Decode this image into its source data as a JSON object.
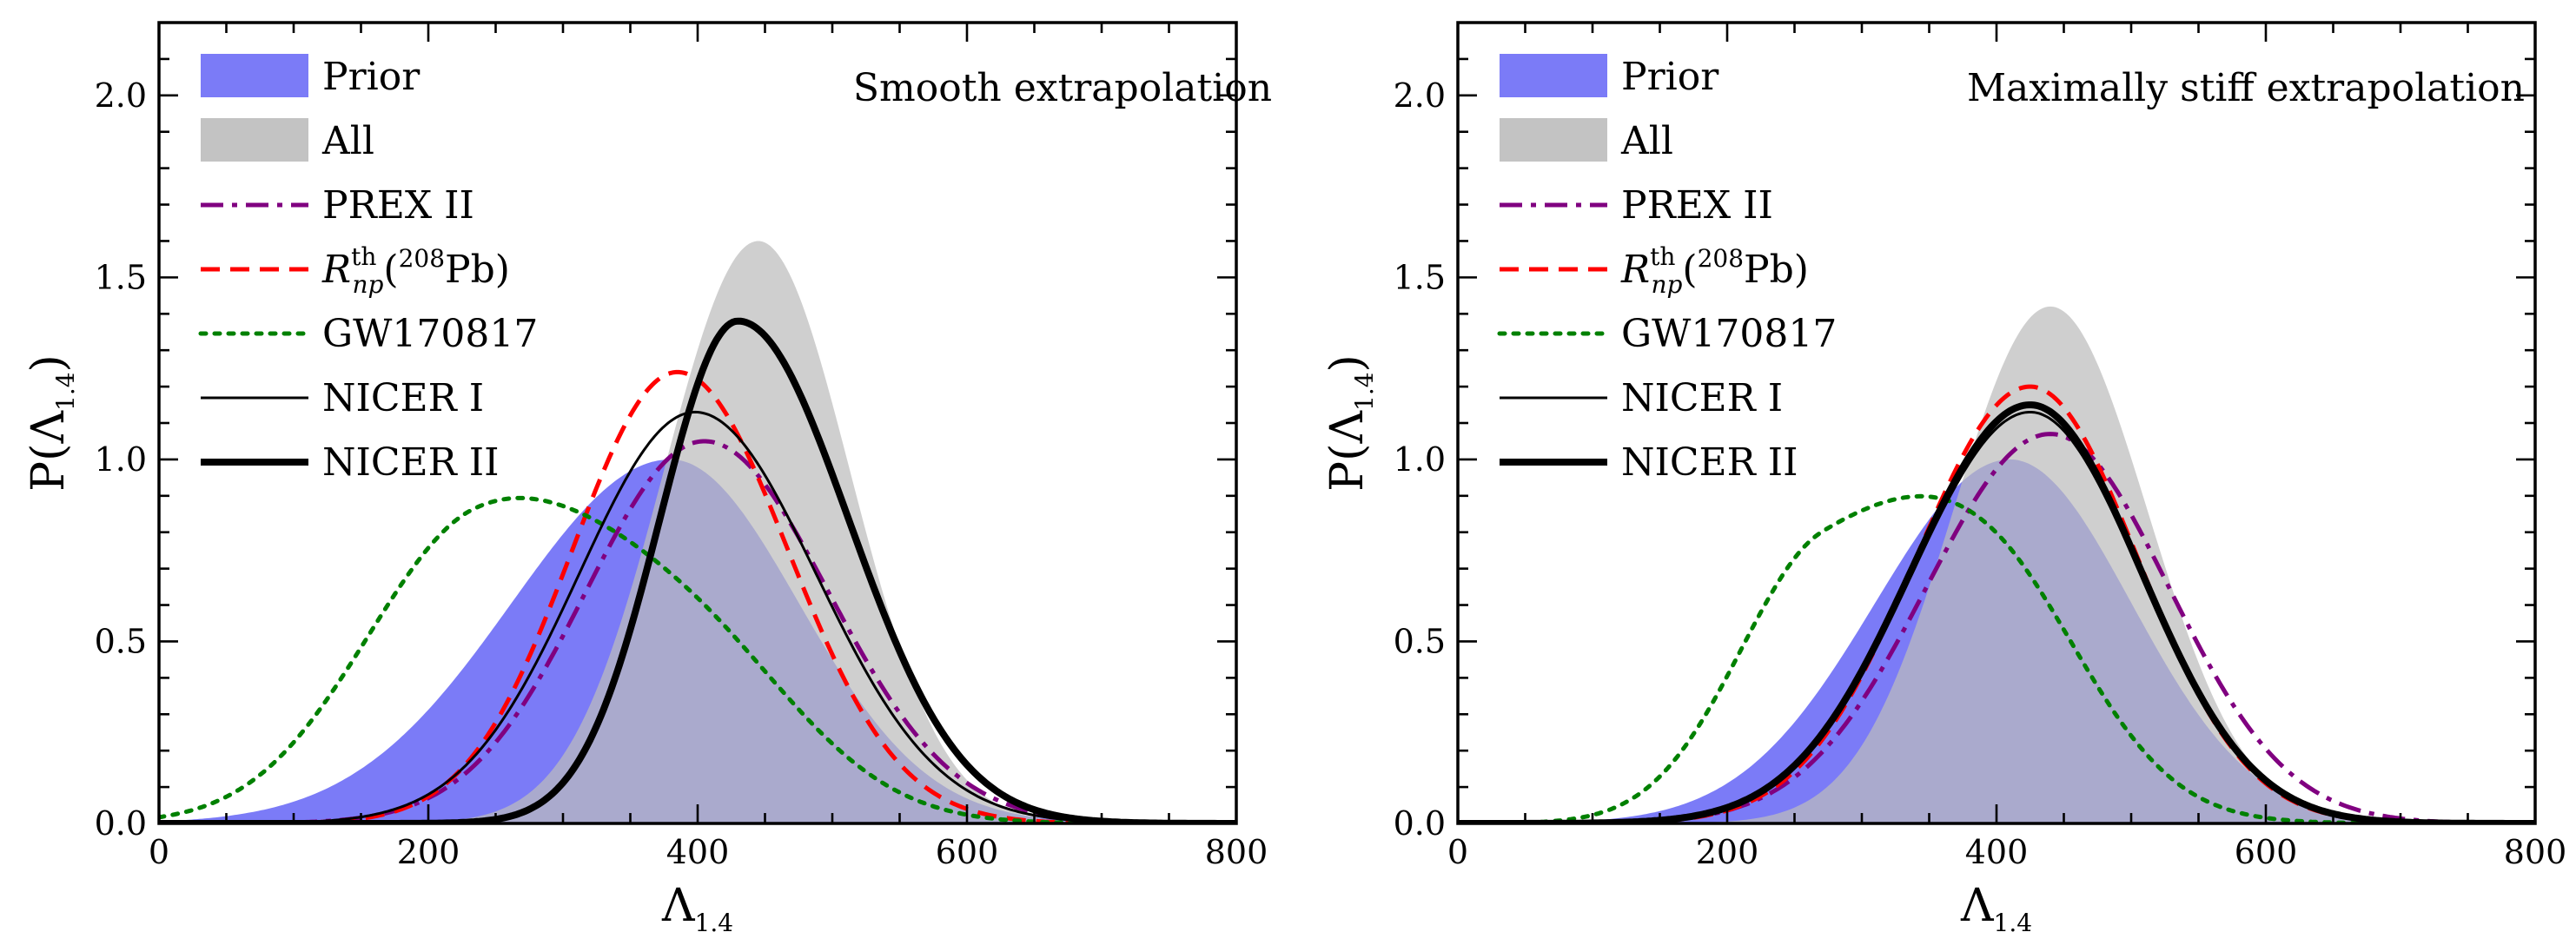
{
  "chart_data": [
    {
      "type": "area",
      "annotation": "Smooth extrapolation",
      "xlabel": "Λ",
      "xlabel_sub": "1.4",
      "ylabel": "P(Λ",
      "ylabel_sub": "1.4",
      "ylabel_close": ")",
      "xlim": [
        0,
        800
      ],
      "ylim": [
        0,
        2.2
      ],
      "xticks": [
        0,
        200,
        400,
        600,
        800
      ],
      "yticks": [
        0.0,
        0.5,
        1.0,
        1.5,
        2.0
      ],
      "xtick_labels": [
        "0",
        "200",
        "400",
        "600",
        "800"
      ],
      "ytick_labels": [
        "0.0",
        "0.5",
        "1.0",
        "1.5",
        "2.0"
      ],
      "legend": [
        {
          "key": "prior",
          "label": "Prior"
        },
        {
          "key": "all",
          "label": "All"
        },
        {
          "key": "prex",
          "label": "PREX II"
        },
        {
          "key": "rnp",
          "label": "R",
          "label_sub": "np",
          "label_sup": "th",
          "label_rest": "(",
          "label_sup2": "208",
          "label_end": "Pb)"
        },
        {
          "key": "gw",
          "label": "GW170817"
        },
        {
          "key": "nicer1",
          "label": "NICER I"
        },
        {
          "key": "nicer2",
          "label": "NICER II"
        }
      ],
      "series": [
        {
          "key": "prior",
          "name": "Prior",
          "kind": "fill",
          "color": "#7b7bf7",
          "peaks": [
            [
              380,
              1.0,
              118,
              95
            ]
          ]
        },
        {
          "key": "all",
          "name": "All",
          "kind": "fill",
          "color": "#bdbdbd",
          "peaks": [
            [
              445,
              1.6,
              70,
              68
            ]
          ]
        },
        {
          "key": "prex",
          "name": "PREX II",
          "kind": "line",
          "color": "#800080",
          "dash": "dashdot",
          "peaks": [
            [
              405,
              1.05,
              88,
              92
            ]
          ]
        },
        {
          "key": "rnp",
          "name": "Rnp th (208Pb)",
          "kind": "line",
          "color": "#ff0000",
          "dash": "dash",
          "peaks": [
            [
              385,
              1.24,
              78,
              82
            ]
          ]
        },
        {
          "key": "gw",
          "name": "GW170817",
          "kind": "line",
          "color": "#008000",
          "dash": "dot",
          "peaks": [
            [
              235,
              0.78,
              85,
              100
            ],
            [
              395,
              0.42,
              90,
              85
            ]
          ]
        },
        {
          "key": "nicer1",
          "name": "NICER I",
          "kind": "line",
          "color": "#000000",
          "dash": "solid",
          "width": "thin",
          "peaks": [
            [
              398,
              1.13,
              86,
              90
            ]
          ]
        },
        {
          "key": "nicer2",
          "name": "NICER II",
          "kind": "line",
          "color": "#000000",
          "dash": "solid",
          "width": "thick",
          "peaks": [
            [
              430,
              1.38,
              58,
              82
            ]
          ]
        }
      ]
    },
    {
      "type": "area",
      "annotation": "Maximally stiff extrapolation",
      "xlabel": "Λ",
      "xlabel_sub": "1.4",
      "ylabel": "P(Λ",
      "ylabel_sub": "1.4",
      "ylabel_close": ")",
      "xlim": [
        0,
        800
      ],
      "ylim": [
        0,
        2.2
      ],
      "xticks": [
        0,
        200,
        400,
        600,
        800
      ],
      "yticks": [
        0.0,
        0.5,
        1.0,
        1.5,
        2.0
      ],
      "xtick_labels": [
        "0",
        "200",
        "400",
        "600",
        "800"
      ],
      "ytick_labels": [
        "0.0",
        "0.5",
        "1.0",
        "1.5",
        "2.0"
      ],
      "legend": [
        {
          "key": "prior",
          "label": "Prior"
        },
        {
          "key": "all",
          "label": "All"
        },
        {
          "key": "prex",
          "label": "PREX II"
        },
        {
          "key": "rnp",
          "label": "R",
          "label_sub": "np",
          "label_sup": "th",
          "label_rest": "(",
          "label_sup2": "208",
          "label_end": "Pb)"
        },
        {
          "key": "gw",
          "label": "GW170817"
        },
        {
          "key": "nicer1",
          "label": "NICER I"
        },
        {
          "key": "nicer2",
          "label": "NICER II"
        }
      ],
      "series": [
        {
          "key": "prior",
          "name": "Prior",
          "kind": "fill",
          "color": "#7b7bf7",
          "peaks": [
            [
              410,
              1.0,
              100,
              90
            ]
          ]
        },
        {
          "key": "all",
          "name": "All",
          "kind": "fill",
          "color": "#bdbdbd",
          "peaks": [
            [
              440,
              1.42,
              72,
              72
            ]
          ]
        },
        {
          "key": "prex",
          "name": "PREX II",
          "kind": "line",
          "color": "#800080",
          "dash": "dashdot",
          "peaks": [
            [
              440,
              1.07,
              92,
              88
            ]
          ]
        },
        {
          "key": "rnp",
          "name": "Rnp th (208Pb)",
          "kind": "line",
          "color": "#ff0000",
          "dash": "dash",
          "peaks": [
            [
              425,
              1.2,
              85,
              80
            ]
          ]
        },
        {
          "key": "gw",
          "name": "GW170817",
          "kind": "line",
          "color": "#008000",
          "dash": "dot",
          "peaks": [
            [
              270,
              0.7,
              65,
              110
            ],
            [
              400,
              0.45,
              75,
              70
            ]
          ]
        },
        {
          "key": "nicer1",
          "name": "NICER I",
          "kind": "line",
          "color": "#000000",
          "dash": "solid",
          "width": "thin",
          "peaks": [
            [
              425,
              1.13,
              88,
              82
            ]
          ]
        },
        {
          "key": "nicer2",
          "name": "NICER II",
          "kind": "line",
          "color": "#000000",
          "dash": "solid",
          "width": "thick",
          "peaks": [
            [
              425,
              1.15,
              88,
              82
            ]
          ]
        }
      ]
    }
  ]
}
